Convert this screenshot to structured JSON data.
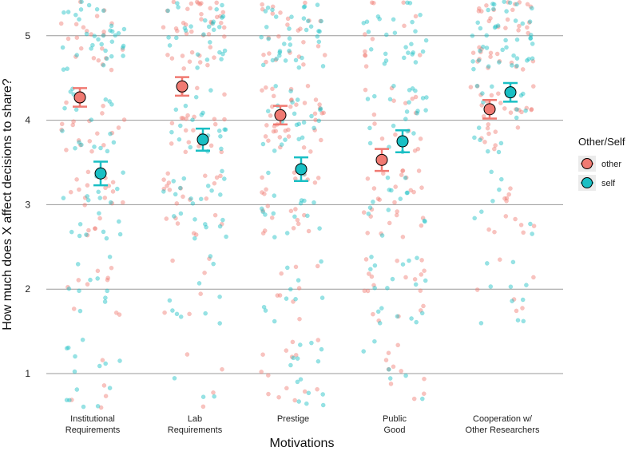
{
  "chart_data": {
    "type": "scatter",
    "subtype": "jittered points with mean and error bars",
    "title": "",
    "xlabel": "Motivations",
    "ylabel": "How much does X affect decisions to share?",
    "ylim": [
      0.6,
      5.4
    ],
    "yticks": [
      1,
      2,
      3,
      4,
      5
    ],
    "grid": "horizontal",
    "categories": [
      {
        "key": "institutional",
        "lines": [
          "Institutional",
          "Requirements"
        ]
      },
      {
        "key": "lab",
        "lines": [
          "Lab",
          "Requirements"
        ]
      },
      {
        "key": "prestige",
        "lines": [
          "Prestige"
        ]
      },
      {
        "key": "public",
        "lines": [
          "Public",
          "Good"
        ]
      },
      {
        "key": "cooperation",
        "lines": [
          "Cooperation w/",
          "Other Researchers"
        ]
      }
    ],
    "legend": {
      "title": "Other/Self",
      "position": "right",
      "entries": [
        {
          "key": "other",
          "label": "other",
          "color": "#F07A72"
        },
        {
          "key": "self",
          "label": "self",
          "color": "#19BFC4"
        }
      ]
    },
    "series": [
      {
        "name": "other",
        "color": "#F07A72",
        "means": [
          4.27,
          4.4,
          4.06,
          3.53,
          4.13
        ],
        "err": [
          0.11,
          0.11,
          0.11,
          0.13,
          0.11
        ]
      },
      {
        "name": "self",
        "color": "#19BFC4",
        "means": [
          3.37,
          3.77,
          3.42,
          3.75,
          4.33
        ],
        "err": [
          0.14,
          0.13,
          0.14,
          0.13,
          0.11
        ]
      }
    ],
    "distribution": {
      "institutional": {
        "other": [
          [
            1,
            5
          ],
          [
            2,
            10
          ],
          [
            3,
            22
          ],
          [
            4,
            18
          ],
          [
            5,
            22
          ]
        ],
        "self": [
          [
            1,
            14
          ],
          [
            2,
            10
          ],
          [
            3,
            18
          ],
          [
            4,
            18
          ],
          [
            5,
            34
          ]
        ]
      },
      "lab": {
        "other": [
          [
            1,
            4
          ],
          [
            2,
            6
          ],
          [
            3,
            22
          ],
          [
            4,
            22
          ],
          [
            5,
            40
          ]
        ],
        "self": [
          [
            1,
            3
          ],
          [
            2,
            10
          ],
          [
            3,
            22
          ],
          [
            4,
            18
          ],
          [
            5,
            28
          ]
        ]
      },
      "prestige": {
        "other": [
          [
            1,
            14
          ],
          [
            2,
            8
          ],
          [
            3,
            22
          ],
          [
            4,
            36
          ],
          [
            5,
            24
          ]
        ],
        "self": [
          [
            1,
            14
          ],
          [
            2,
            10
          ],
          [
            3,
            16
          ],
          [
            4,
            22
          ],
          [
            5,
            36
          ]
        ]
      },
      "public": {
        "other": [
          [
            1,
            10
          ],
          [
            2,
            18
          ],
          [
            3,
            26
          ],
          [
            4,
            16
          ],
          [
            5,
            12
          ]
        ],
        "self": [
          [
            1,
            6
          ],
          [
            2,
            18
          ],
          [
            3,
            14
          ],
          [
            4,
            22
          ],
          [
            5,
            26
          ]
        ]
      },
      "cooperation": {
        "other": [
          [
            2,
            6
          ],
          [
            3,
            12
          ],
          [
            4,
            28
          ],
          [
            5,
            36
          ]
        ],
        "self": [
          [
            2,
            10
          ],
          [
            3,
            8
          ],
          [
            4,
            16
          ],
          [
            5,
            42
          ]
        ]
      }
    }
  }
}
